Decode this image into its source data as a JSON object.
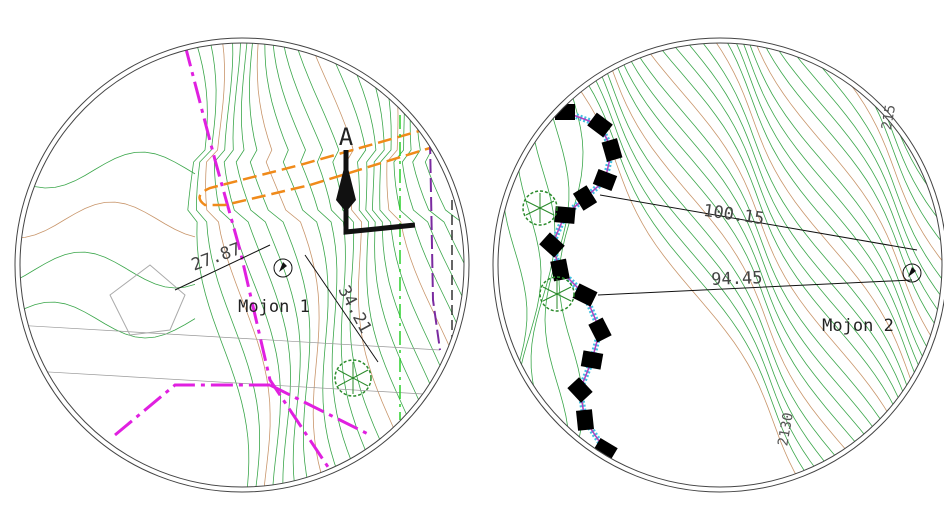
{
  "views": [
    {
      "north": "A",
      "dimensions": [
        "27.87",
        "34.21"
      ],
      "label": "Mojon 1"
    },
    {
      "dimensions": [
        "100.15",
        "94.45"
      ],
      "label": "Mojon 2",
      "contours": [
        "215",
        "2130"
      ]
    }
  ]
}
